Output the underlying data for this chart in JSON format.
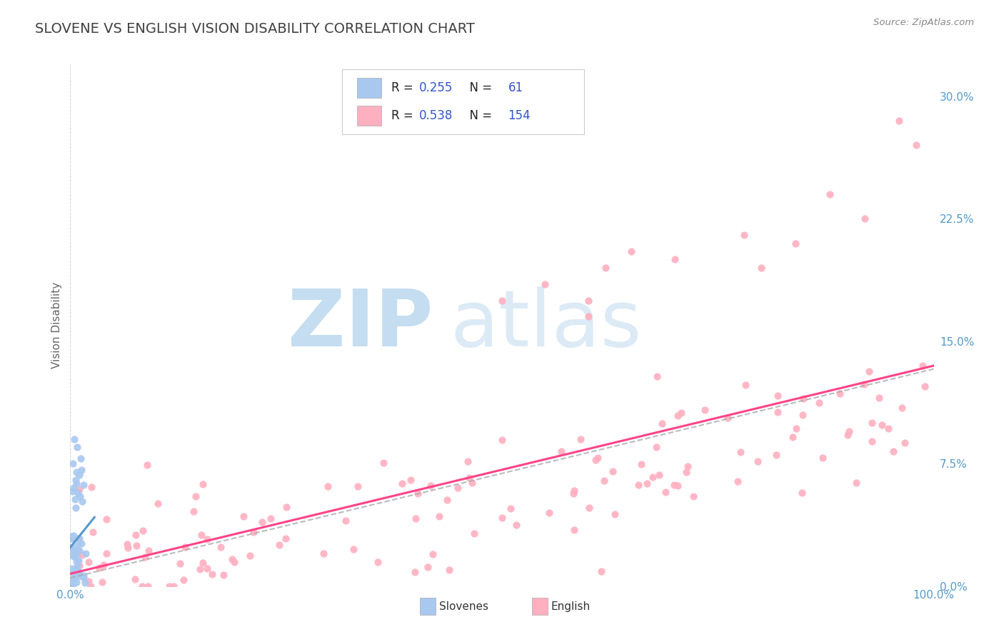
{
  "title": "SLOVENE VS ENGLISH VISION DISABILITY CORRELATION CHART",
  "source": "Source: ZipAtlas.com",
  "ylabel": "Vision Disability",
  "xlim": [
    0,
    1
  ],
  "ylim": [
    0,
    0.32
  ],
  "x_tick_labels": [
    "0.0%",
    "100.0%"
  ],
  "y_tick_labels": [
    "0.0%",
    "7.5%",
    "15.0%",
    "22.5%",
    "30.0%"
  ],
  "y_tick_values": [
    0.0,
    0.075,
    0.15,
    0.225,
    0.3
  ],
  "background_color": "#ffffff",
  "grid_color": "#c8c8c8",
  "title_color": "#404040",
  "title_fontsize": 14,
  "scatter_color1": "#a8c8f0",
  "scatter_color2": "#ffb0c0",
  "line_color1": "#5599cc",
  "line_color2": "#ff4488",
  "dash_color": "#aaaaaa",
  "legend_label1": "Slovenes",
  "legend_label2": "English",
  "legend_box_color1": "#a8c8f0",
  "legend_box_color2": "#ffb0c0",
  "right_tick_color": "#5599cc",
  "bottom_tick_color": "#5599cc",
  "watermark_zip_color": "#c5ddf0",
  "watermark_atlas_color": "#c5ddf0"
}
